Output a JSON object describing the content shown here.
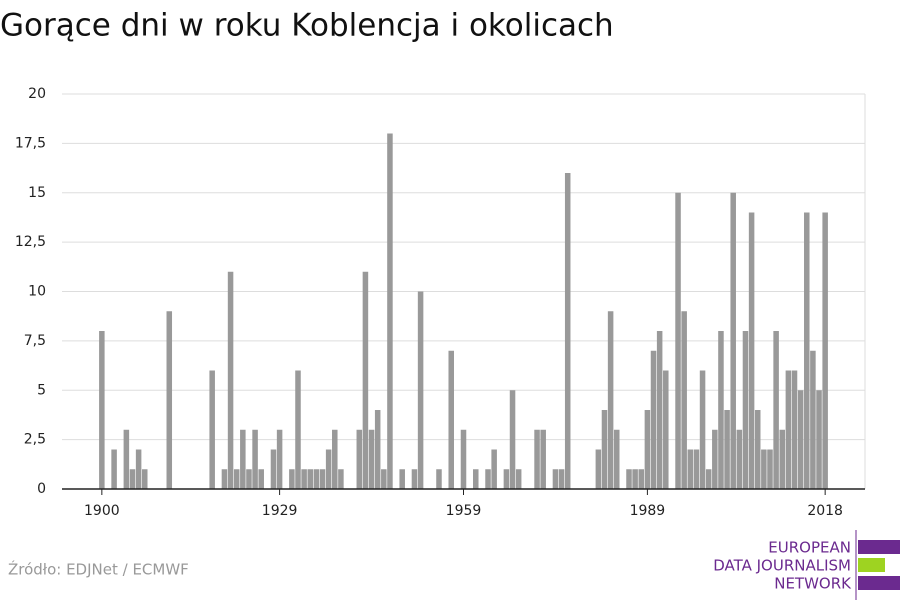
{
  "chart_data": {
    "type": "bar",
    "title": "Gorące dni w roku Koblencja i okolicach",
    "source": "Źródło: EDJNet / ECMWF",
    "logo": [
      "EUROPEAN",
      "DATA JOURNALISM",
      "NETWORK"
    ],
    "color": "#999999",
    "grid": true,
    "x": [
      1900,
      1901,
      1902,
      1903,
      1904,
      1905,
      1906,
      1907,
      1908,
      1909,
      1910,
      1911,
      1912,
      1913,
      1914,
      1915,
      1916,
      1917,
      1918,
      1919,
      1920,
      1921,
      1922,
      1923,
      1924,
      1925,
      1926,
      1927,
      1928,
      1929,
      1930,
      1931,
      1932,
      1933,
      1934,
      1935,
      1936,
      1937,
      1938,
      1939,
      1940,
      1941,
      1942,
      1943,
      1944,
      1945,
      1946,
      1947,
      1948,
      1949,
      1950,
      1951,
      1952,
      1953,
      1954,
      1955,
      1956,
      1957,
      1958,
      1959,
      1960,
      1961,
      1962,
      1963,
      1964,
      1965,
      1966,
      1967,
      1968,
      1969,
      1970,
      1971,
      1972,
      1973,
      1974,
      1975,
      1976,
      1977,
      1978,
      1979,
      1980,
      1981,
      1982,
      1983,
      1984,
      1985,
      1986,
      1987,
      1988,
      1989,
      1990,
      1991,
      1992,
      1993,
      1994,
      1995,
      1996,
      1997,
      1998,
      1999,
      2000,
      2001,
      2002,
      2003,
      2004,
      2005,
      2006,
      2007,
      2008,
      2009,
      2010,
      2011,
      2012,
      2013,
      2014,
      2015,
      2016,
      2017,
      2018
    ],
    "values": [
      8,
      0,
      2,
      0,
      3,
      1,
      2,
      1,
      0,
      0,
      0,
      9,
      0,
      0,
      0,
      0,
      0,
      0,
      6,
      0,
      1,
      11,
      1,
      3,
      1,
      3,
      1,
      0,
      2,
      3,
      0,
      1,
      6,
      1,
      1,
      1,
      1,
      2,
      3,
      1,
      0,
      0,
      3,
      11,
      3,
      4,
      1,
      18,
      0,
      1,
      0,
      1,
      10,
      0,
      0,
      1,
      0,
      7,
      0,
      3,
      0,
      1,
      0,
      1,
      2,
      0,
      1,
      5,
      1,
      0,
      0,
      3,
      3,
      0,
      1,
      1,
      16,
      0,
      0,
      0,
      0,
      2,
      4,
      9,
      3,
      0,
      1,
      1,
      1,
      4,
      7,
      8,
      6,
      0,
      15,
      9,
      2,
      2,
      6,
      1,
      3,
      8,
      4,
      15,
      3,
      8,
      14,
      4,
      2,
      2,
      8,
      3,
      6,
      6,
      5,
      14,
      7,
      5,
      14
    ],
    "xlim": [
      1893.5,
      2024.5
    ],
    "xticks": [
      1900,
      1929,
      1959,
      1989,
      2018
    ],
    "ylim": [
      0,
      20
    ],
    "yticks": [
      0,
      {
        "value": 2.5,
        "label": "2,5"
      },
      5,
      {
        "value": 7.5,
        "label": "7,5"
      },
      10,
      {
        "value": 12.5,
        "label": "12,5"
      },
      15,
      {
        "value": 17.5,
        "label": "17,5"
      },
      20
    ]
  }
}
